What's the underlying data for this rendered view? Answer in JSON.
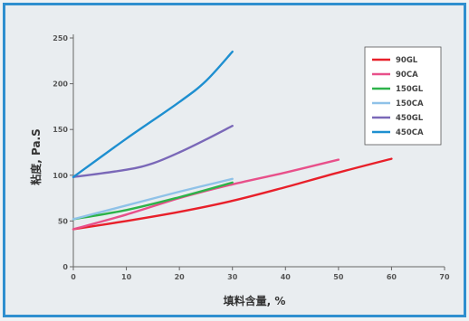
{
  "chart_data": {
    "type": "line",
    "title": "",
    "xlabel": "填料含量, %",
    "ylabel": "粘度, Pa.S",
    "xlim": [
      0,
      70
    ],
    "ylim": [
      0,
      250
    ],
    "xticks": [
      "0",
      "10",
      "20",
      "30",
      "40",
      "50",
      "60",
      "70"
    ],
    "yticks": [
      "0",
      "50",
      "100",
      "150",
      "200",
      "250"
    ],
    "grid": false,
    "legend_position": "top-right",
    "series": [
      {
        "name": "90GL",
        "color": "#e8202a",
        "x": [
          0,
          10,
          20,
          30,
          40,
          50,
          60
        ],
        "y": [
          41,
          50,
          60,
          72,
          87,
          103,
          118
        ]
      },
      {
        "name": "90CA",
        "color": "#e8508a",
        "x": [
          0,
          10,
          20,
          30,
          40,
          50
        ],
        "y": [
          41,
          57,
          75,
          90,
          103,
          117
        ]
      },
      {
        "name": "150GL",
        "color": "#2db34a",
        "x": [
          0,
          10,
          20,
          30
        ],
        "y": [
          52,
          62,
          76,
          92
        ]
      },
      {
        "name": "150CA",
        "color": "#8fc2e8",
        "x": [
          0,
          10,
          20,
          30
        ],
        "y": [
          52,
          67,
          82,
          96
        ]
      },
      {
        "name": "450GL",
        "color": "#7a68b8",
        "x": [
          0,
          10,
          15,
          20,
          25,
          30
        ],
        "y": [
          98,
          106,
          113,
          125,
          139,
          154
        ]
      },
      {
        "name": "450CA",
        "color": "#1e8fd0",
        "x": [
          0,
          10,
          20,
          25,
          30
        ],
        "y": [
          98,
          140,
          180,
          203,
          235
        ]
      }
    ]
  }
}
